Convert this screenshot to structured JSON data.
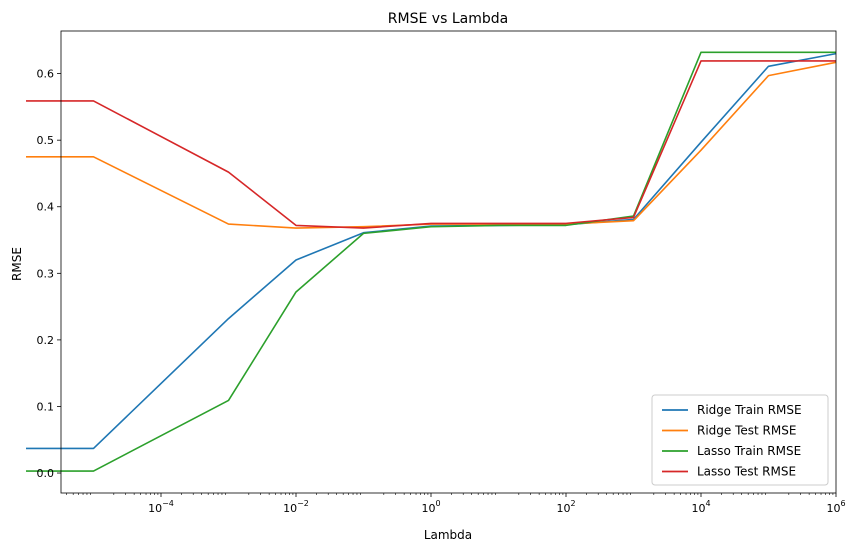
{
  "chart_data": {
    "type": "line",
    "title": "RMSE vs Lambda",
    "xlabel": "Lambda",
    "ylabel": "RMSE",
    "x_scale": "log",
    "x": [
      1e-06,
      1e-05,
      0.001,
      0.01,
      0.1,
      1,
      10,
      100,
      1000,
      10000,
      100000,
      1000000
    ],
    "xlim": [
      3.3e-06,
      1000000
    ],
    "ylim": [
      -0.03,
      0.664
    ],
    "grid": false,
    "legend_position": "lower right",
    "x_ticks": [
      {
        "value": 0.0001,
        "base": "10",
        "exp": "−4"
      },
      {
        "value": 0.01,
        "base": "10",
        "exp": "−2"
      },
      {
        "value": 1,
        "base": "10",
        "exp": "0"
      },
      {
        "value": 100,
        "base": "10",
        "exp": "2"
      },
      {
        "value": 10000,
        "base": "10",
        "exp": "4"
      },
      {
        "value": 1000000,
        "base": "10",
        "exp": "6"
      }
    ],
    "y_ticks": [
      {
        "value": 0.0,
        "label": "0.0"
      },
      {
        "value": 0.1,
        "label": "0.1"
      },
      {
        "value": 0.2,
        "label": "0.2"
      },
      {
        "value": 0.3,
        "label": "0.3"
      },
      {
        "value": 0.4,
        "label": "0.4"
      },
      {
        "value": 0.5,
        "label": "0.5"
      },
      {
        "value": 0.6,
        "label": "0.6"
      }
    ],
    "series": [
      {
        "name": "Ridge Train RMSE",
        "color": "#1f77b4",
        "values": [
          0.037,
          0.037,
          0.232,
          0.32,
          0.361,
          0.371,
          0.372,
          0.373,
          0.381,
          0.497,
          0.611,
          0.63
        ]
      },
      {
        "name": "Ridge Test RMSE",
        "color": "#ff7f0e",
        "values": [
          0.475,
          0.475,
          0.374,
          0.368,
          0.37,
          0.374,
          0.374,
          0.374,
          0.379,
          0.485,
          0.597,
          0.617
        ]
      },
      {
        "name": "Lasso Train RMSE",
        "color": "#2ca02c",
        "values": [
          0.003,
          0.003,
          0.109,
          0.272,
          0.36,
          0.37,
          0.372,
          0.372,
          0.386,
          0.632,
          0.632,
          0.632
        ]
      },
      {
        "name": "Lasso Test RMSE",
        "color": "#d62728",
        "values": [
          0.559,
          0.559,
          0.452,
          0.372,
          0.368,
          0.375,
          0.375,
          0.375,
          0.384,
          0.619,
          0.619,
          0.619
        ]
      }
    ]
  }
}
